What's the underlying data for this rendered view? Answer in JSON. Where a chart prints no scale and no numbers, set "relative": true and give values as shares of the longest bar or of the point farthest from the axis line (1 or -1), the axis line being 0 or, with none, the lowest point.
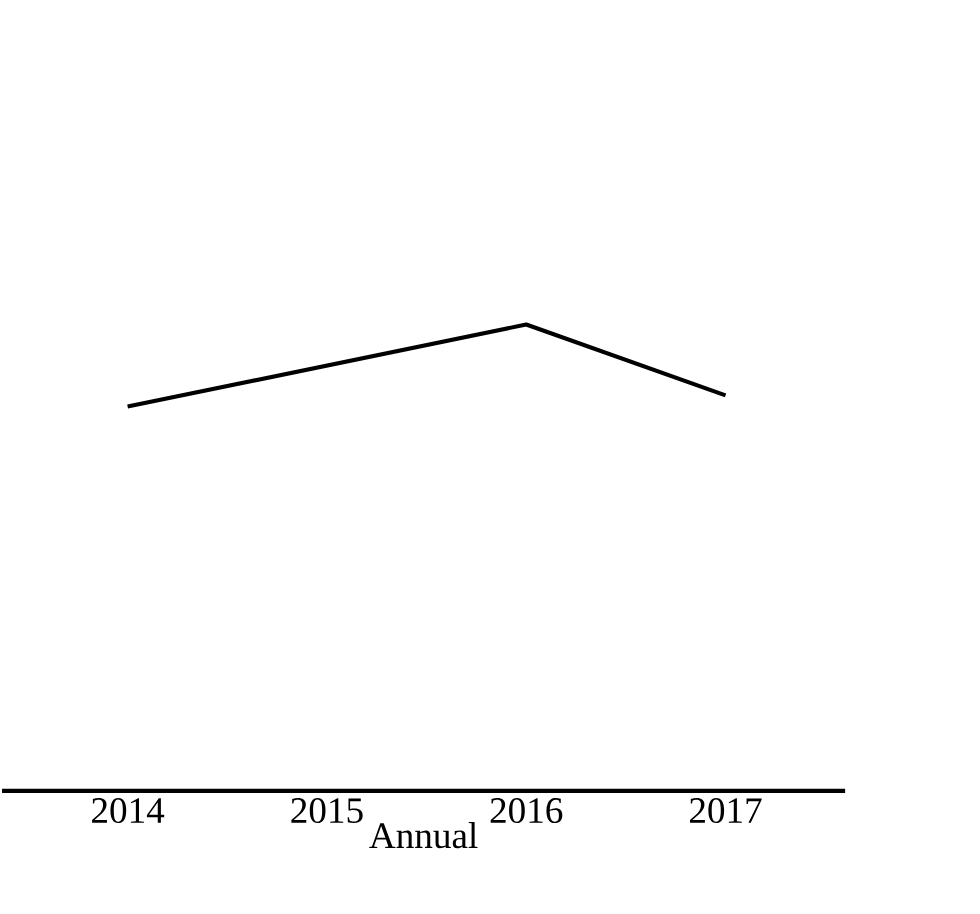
{
  "chart_data": {
    "type": "line",
    "relative": true,
    "xlabel": "Annual",
    "categories": [
      "2014",
      "2015",
      "2016",
      "2017"
    ],
    "series": [
      {
        "color": "#000000",
        "values": [
          0.824,
          0.912,
          1,
          0.848
        ]
      }
    ]
  }
}
